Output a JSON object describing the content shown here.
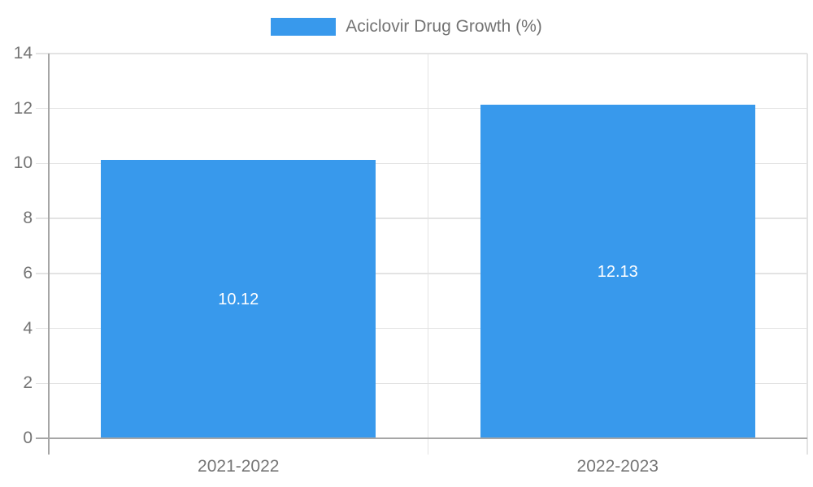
{
  "chart_data": {
    "type": "bar",
    "categories": [
      "2021-2022",
      "2022-2023"
    ],
    "series": [
      {
        "name": "Aciclovir Drug Growth (%)",
        "values": [
          10.12,
          12.13
        ]
      }
    ],
    "data_labels": [
      "10.12",
      "12.13"
    ],
    "title": "",
    "xlabel": "",
    "ylabel": "",
    "ylim": [
      0,
      14
    ],
    "yticks": [
      0,
      2,
      4,
      6,
      8,
      10,
      12,
      14
    ],
    "grid": true,
    "legend_position": "top",
    "colors": {
      "bar": "#3899EC",
      "grid_line": "#e3e3e3",
      "axis_line": "#a6a6a6",
      "tick_text": "#757575",
      "legend_text": "#737373",
      "data_label_text": "#ffffff",
      "background": "#ffffff"
    }
  }
}
